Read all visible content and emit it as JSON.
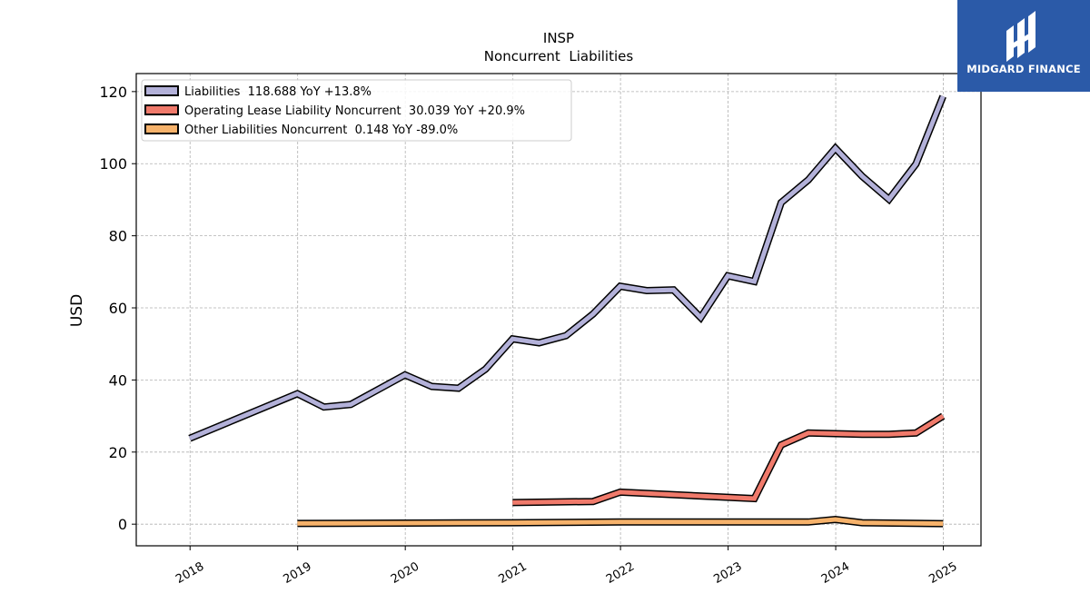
{
  "header": {
    "brand": "MIDGARD FINANCE"
  },
  "chart_data": {
    "type": "line",
    "title": "INSP",
    "subtitle": "Noncurrent  Liabilities",
    "xlabel": "",
    "ylabel": "USD",
    "xlim": [
      2017.5,
      2025.35
    ],
    "ylim": [
      -6,
      125
    ],
    "x_ticks": [
      "2018",
      "2019",
      "2020",
      "2021",
      "2022",
      "2023",
      "2024",
      "2025"
    ],
    "y_ticks": [
      0,
      20,
      40,
      60,
      80,
      100,
      120
    ],
    "grid": true,
    "legend_position": "top-left",
    "series": [
      {
        "name": "Liabilities",
        "legend_label": "Liabilities  118.688 YoY +13.8%",
        "color": "#b3b1d9",
        "points": [
          [
            "2017-12-31",
            23.8
          ],
          [
            "2018-12-31",
            36.2
          ],
          [
            "2019-03-31",
            32.5
          ],
          [
            "2019-06-30",
            33.2
          ],
          [
            "2019-12-31",
            41.4
          ],
          [
            "2020-03-31",
            38.2
          ],
          [
            "2020-06-30",
            37.7
          ],
          [
            "2020-09-30",
            43.0
          ],
          [
            "2020-12-31",
            51.4
          ],
          [
            "2021-03-31",
            50.3
          ],
          [
            "2021-06-30",
            52.3
          ],
          [
            "2021-09-30",
            58.3
          ],
          [
            "2021-12-31",
            66.0
          ],
          [
            "2022-03-31",
            64.8
          ],
          [
            "2022-06-30",
            65.0
          ],
          [
            "2022-09-30",
            57.3
          ],
          [
            "2022-12-31",
            68.9
          ],
          [
            "2023-03-31",
            67.3
          ],
          [
            "2023-06-30",
            89.2
          ],
          [
            "2023-09-30",
            95.5
          ],
          [
            "2023-12-31",
            104.3
          ],
          [
            "2024-03-31",
            96.5
          ],
          [
            "2024-06-30",
            90.1
          ],
          [
            "2024-09-30",
            99.9
          ],
          [
            "2024-12-31",
            118.7
          ]
        ]
      },
      {
        "name": "Operating Lease Liability Noncurrent",
        "legend_label": "Operating Lease Liability Noncurrent  30.039 YoY +20.9%",
        "color": "#f07a6b",
        "points": [
          [
            "2020-12-31",
            6.0
          ],
          [
            "2021-09-30",
            6.3
          ],
          [
            "2021-12-31",
            8.9
          ],
          [
            "2023-03-31",
            7.1
          ],
          [
            "2023-06-30",
            22.0
          ],
          [
            "2023-09-30",
            25.3
          ],
          [
            "2024-03-31",
            24.9
          ],
          [
            "2024-06-30",
            24.9
          ],
          [
            "2024-09-30",
            25.3
          ],
          [
            "2024-12-31",
            30.0
          ]
        ]
      },
      {
        "name": "Other Liabilities Noncurrent",
        "legend_label": "Other Liabilities Noncurrent  0.148 YoY -89.0%",
        "color": "#f6b26b",
        "points": [
          [
            "2018-12-31",
            0.2
          ],
          [
            "2020-12-31",
            0.4
          ],
          [
            "2021-12-31",
            0.6
          ],
          [
            "2023-09-30",
            0.6
          ],
          [
            "2023-12-31",
            1.3
          ],
          [
            "2024-03-31",
            0.4
          ],
          [
            "2024-12-31",
            0.15
          ]
        ]
      }
    ]
  }
}
